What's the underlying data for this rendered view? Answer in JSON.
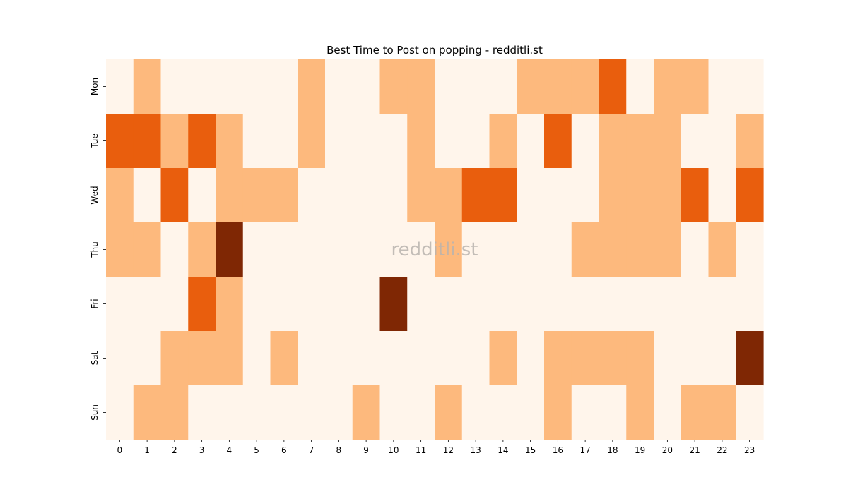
{
  "chart_data": {
    "type": "heatmap",
    "title": "Best Time to Post on popping - redditli.st",
    "watermark": "redditli.st",
    "xlabel": "",
    "ylabel": "",
    "x_categories": [
      "0",
      "1",
      "2",
      "3",
      "4",
      "5",
      "6",
      "7",
      "8",
      "9",
      "10",
      "11",
      "12",
      "13",
      "14",
      "15",
      "16",
      "17",
      "18",
      "19",
      "20",
      "21",
      "22",
      "23"
    ],
    "y_categories": [
      "Mon",
      "Tue",
      "Wed",
      "Thu",
      "Fri",
      "Sat",
      "Sun"
    ],
    "levels": [
      [
        0,
        1,
        0,
        0,
        0,
        0,
        0,
        1,
        0,
        0,
        1,
        1,
        0,
        0,
        0,
        1,
        1,
        1,
        2,
        0,
        1,
        1,
        0,
        0
      ],
      [
        2,
        2,
        1,
        2,
        1,
        0,
        0,
        1,
        0,
        0,
        0,
        1,
        0,
        0,
        1,
        0,
        2,
        0,
        1,
        1,
        1,
        0,
        0,
        1
      ],
      [
        1,
        0,
        2,
        0,
        1,
        1,
        1,
        0,
        0,
        0,
        0,
        1,
        1,
        2,
        2,
        0,
        0,
        0,
        1,
        1,
        1,
        2,
        0,
        2
      ],
      [
        1,
        1,
        0,
        1,
        3,
        0,
        0,
        0,
        0,
        0,
        0,
        0,
        1,
        0,
        0,
        0,
        0,
        1,
        1,
        1,
        1,
        0,
        1,
        0
      ],
      [
        0,
        0,
        0,
        2,
        1,
        0,
        0,
        0,
        0,
        0,
        3,
        0,
        0,
        0,
        0,
        0,
        0,
        0,
        0,
        0,
        0,
        0,
        0,
        0
      ],
      [
        0,
        0,
        1,
        1,
        1,
        0,
        1,
        0,
        0,
        0,
        0,
        0,
        0,
        0,
        1,
        0,
        1,
        1,
        1,
        1,
        0,
        0,
        0,
        3
      ],
      [
        0,
        1,
        1,
        0,
        0,
        0,
        0,
        0,
        0,
        1,
        0,
        0,
        1,
        0,
        0,
        0,
        1,
        0,
        0,
        1,
        0,
        1,
        1,
        0
      ]
    ],
    "colors": [
      "#fff5eb",
      "#fdb97d",
      "#e95e0d",
      "#7f2704"
    ],
    "grid": false,
    "colorbar": false
  }
}
